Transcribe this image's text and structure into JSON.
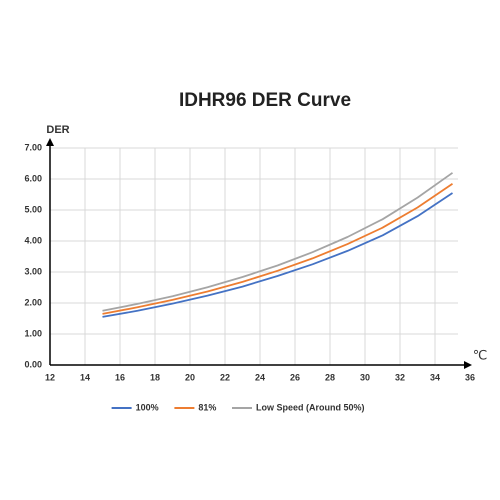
{
  "chart_data": {
    "type": "line",
    "title": "IDHR96  DER Curve",
    "y_label": "DER",
    "x_label": "℃",
    "x": [
      15,
      17,
      19,
      21,
      23,
      25,
      27,
      29,
      31,
      33,
      35
    ],
    "series": [
      {
        "name": "100%",
        "color": "#4472c4",
        "values": [
          1.55,
          1.75,
          1.98,
          2.24,
          2.53,
          2.87,
          3.25,
          3.68,
          4.18,
          4.8,
          5.55
        ]
      },
      {
        "name": "81%",
        "color": "#ed7d31",
        "values": [
          1.65,
          1.86,
          2.1,
          2.37,
          2.68,
          3.04,
          3.44,
          3.9,
          4.43,
          5.08,
          5.85
        ]
      },
      {
        "name": "Low Speed (Around 50%)",
        "color": "#a5a5a5",
        "values": [
          1.75,
          1.97,
          2.22,
          2.51,
          2.84,
          3.21,
          3.64,
          4.13,
          4.7,
          5.4,
          6.2
        ]
      }
    ],
    "xlim": [
      12,
      36
    ],
    "xticks": [
      12,
      14,
      16,
      18,
      20,
      22,
      24,
      26,
      28,
      30,
      32,
      34,
      36
    ],
    "ylim": [
      0,
      7
    ],
    "yticks": [
      {
        "value": 0,
        "label": "0.00"
      },
      {
        "value": 1,
        "label": "1.00"
      },
      {
        "value": 2,
        "label": "2.00"
      },
      {
        "value": 3,
        "label": "3.00"
      },
      {
        "value": 4,
        "label": "4.00"
      },
      {
        "value": 5,
        "label": "5.00"
      },
      {
        "value": 6,
        "label": "6.00"
      },
      {
        "value": 7,
        "label": "7.00"
      }
    ],
    "grid": true,
    "legend": "bottom"
  }
}
